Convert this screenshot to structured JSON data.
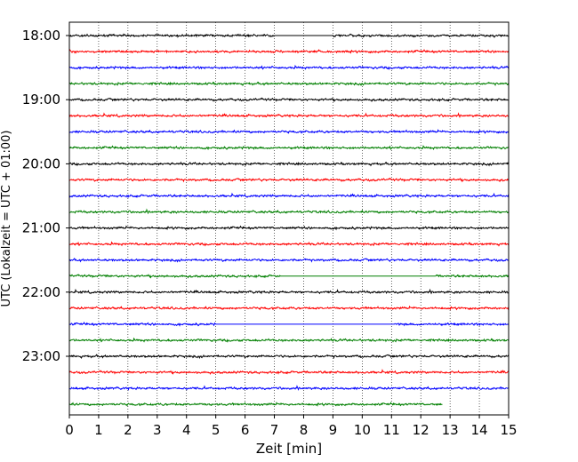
{
  "chart_data": {
    "type": "line",
    "title": "",
    "xlabel": "Zeit  [min]",
    "ylabel": "UTC (Lokalzeit = UTC + 01:00)",
    "xlim": [
      0,
      15
    ],
    "x_ticks": [
      "0",
      "1",
      "2",
      "3",
      "4",
      "5",
      "6",
      "7",
      "8",
      "9",
      "10",
      "11",
      "12",
      "13",
      "14",
      "15"
    ],
    "y_ticks": [
      "18:00",
      "19:00",
      "20:00",
      "21:00",
      "22:00",
      "23:00"
    ],
    "y_tick_rows": [
      0,
      4,
      8,
      12,
      16,
      20
    ],
    "grid": "vertical dotted",
    "rows": [
      {
        "time": "18:00",
        "color": "#000000",
        "end_min": 15,
        "flat": [
          [
            7.0,
            9.0
          ]
        ]
      },
      {
        "time": "18:15",
        "color": "#ff0000",
        "end_min": 15,
        "flat": []
      },
      {
        "time": "18:30",
        "color": "#0000ff",
        "end_min": 15,
        "flat": []
      },
      {
        "time": "18:45",
        "color": "#007f00",
        "end_min": 15,
        "flat": []
      },
      {
        "time": "19:00",
        "color": "#000000",
        "end_min": 15,
        "flat": []
      },
      {
        "time": "19:15",
        "color": "#ff0000",
        "end_min": 15,
        "flat": []
      },
      {
        "time": "19:30",
        "color": "#0000ff",
        "end_min": 15,
        "flat": []
      },
      {
        "time": "19:45",
        "color": "#007f00",
        "end_min": 15,
        "flat": []
      },
      {
        "time": "20:00",
        "color": "#000000",
        "end_min": 15,
        "flat": []
      },
      {
        "time": "20:15",
        "color": "#ff0000",
        "end_min": 15,
        "flat": []
      },
      {
        "time": "20:30",
        "color": "#0000ff",
        "end_min": 15,
        "flat": []
      },
      {
        "time": "20:45",
        "color": "#007f00",
        "end_min": 15,
        "flat": []
      },
      {
        "time": "21:00",
        "color": "#000000",
        "end_min": 15,
        "flat": []
      },
      {
        "time": "21:15",
        "color": "#ff0000",
        "end_min": 15,
        "flat": []
      },
      {
        "time": "21:30",
        "color": "#0000ff",
        "end_min": 15,
        "flat": []
      },
      {
        "time": "21:45",
        "color": "#007f00",
        "end_min": 15,
        "flat": [
          [
            7.2,
            12.5
          ]
        ]
      },
      {
        "time": "22:00",
        "color": "#000000",
        "end_min": 15,
        "flat": []
      },
      {
        "time": "22:15",
        "color": "#ff0000",
        "end_min": 15,
        "flat": []
      },
      {
        "time": "22:30",
        "color": "#0000ff",
        "end_min": 15,
        "flat": [
          [
            5.0,
            11.1
          ]
        ]
      },
      {
        "time": "22:45",
        "color": "#007f00",
        "end_min": 15,
        "flat": []
      },
      {
        "time": "23:00",
        "color": "#000000",
        "end_min": 15,
        "flat": []
      },
      {
        "time": "23:15",
        "color": "#ff0000",
        "end_min": 15,
        "flat": []
      },
      {
        "time": "23:30",
        "color": "#0000ff",
        "end_min": 15,
        "flat": []
      },
      {
        "time": "23:45",
        "color": "#007f00",
        "end_min": 12.75,
        "flat": []
      }
    ]
  }
}
